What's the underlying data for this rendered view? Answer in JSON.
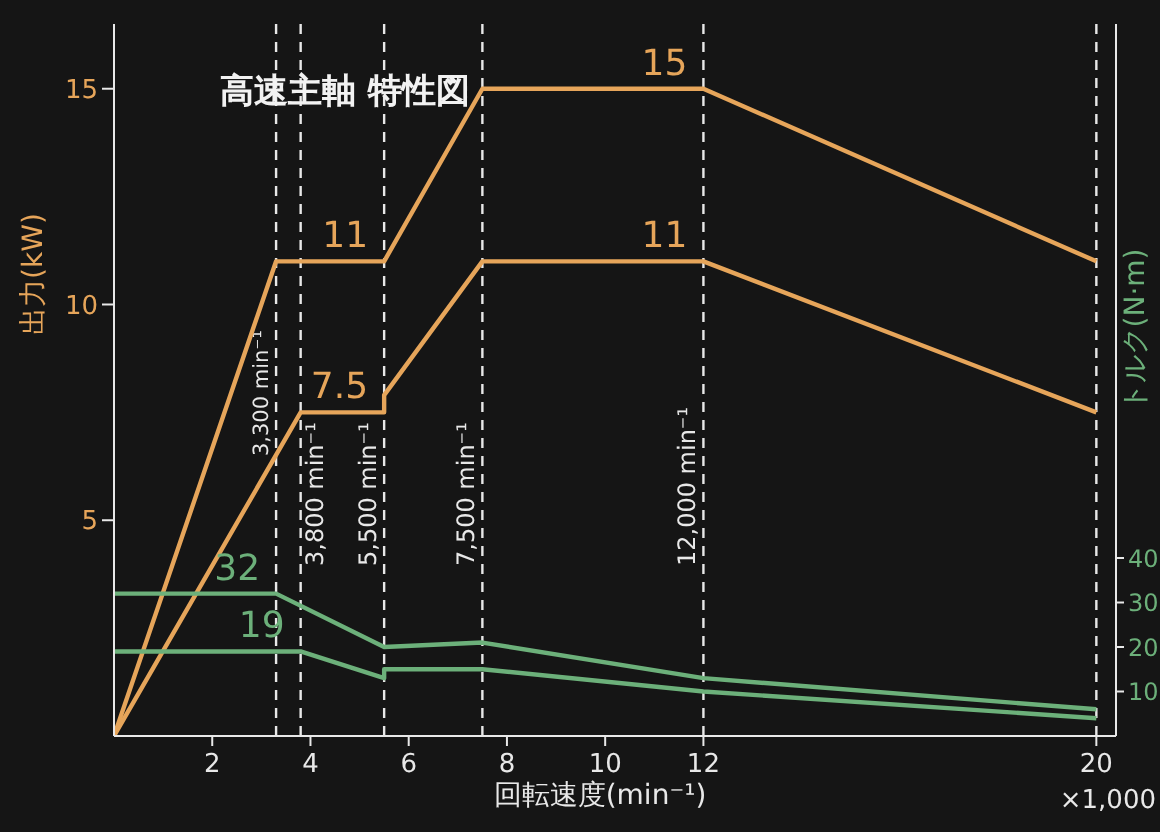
{
  "chart_data": {
    "type": "line",
    "title": "高速主軸 特性図",
    "xlabel": "回転速度(min⁻¹)",
    "ylabel": "出力(kW)",
    "y2label": "トルク(N·m)",
    "annotations": [
      "×1,000"
    ],
    "xlim": [
      0,
      20.4
    ],
    "xticks": [
      2,
      4,
      6,
      8,
      10,
      12,
      20
    ],
    "ylim": [
      0,
      16.5
    ],
    "yticks": [
      5,
      10,
      15
    ],
    "y2lim": [
      0,
      160
    ],
    "y2ticks": [
      10,
      20,
      30,
      40
    ],
    "grid": false,
    "legend": false,
    "marker": "none",
    "line_style": "solid",
    "series": [
      {
        "color": "#e6a55a",
        "x": [
          0,
          3.3,
          5.5,
          7.5,
          12,
          20
        ],
        "values": [
          0,
          11,
          11,
          15,
          15,
          11
        ],
        "value_labels": [
          null,
          null,
          "11",
          null,
          "15",
          null
        ]
      },
      {
        "color": "#e6a55a",
        "x": [
          0,
          3.8,
          5.5,
          5.5,
          7.5,
          12,
          20
        ],
        "values": [
          0,
          7.5,
          7.5,
          7.9,
          11,
          11,
          7.5
        ],
        "value_labels": [
          null,
          null,
          "7.5",
          null,
          null,
          "11",
          null
        ]
      },
      {
        "color": "#6cb07a",
        "axis": "y2",
        "x": [
          0,
          3.3,
          5.5,
          7.5,
          12,
          20
        ],
        "values": [
          32,
          32,
          20,
          21,
          13,
          6
        ],
        "value_labels": [
          null,
          "32",
          null,
          null,
          null,
          null
        ]
      },
      {
        "color": "#6cb07a",
        "axis": "y2",
        "x": [
          0,
          3.8,
          5.5,
          5.5,
          7.5,
          12,
          20
        ],
        "values": [
          19,
          19,
          13,
          15,
          15,
          10,
          4
        ],
        "value_labels": [
          null,
          "19",
          null,
          null,
          null,
          null,
          null
        ]
      }
    ],
    "ref_lines": [
      {
        "axis": "x",
        "value": 3.3,
        "label": "3,300 min⁻¹",
        "color": "#e8e8e8",
        "line_style": "dashed"
      },
      {
        "axis": "x",
        "value": 3.8,
        "label": "3,800 min⁻¹",
        "color": "#e8e8e8",
        "line_style": "dashed"
      },
      {
        "axis": "x",
        "value": 5.5,
        "label": "5,500 min⁻¹",
        "color": "#e8e8e8",
        "line_style": "dashed"
      },
      {
        "axis": "x",
        "value": 7.5,
        "label": "7,500 min⁻¹",
        "color": "#e8e8e8",
        "line_style": "dashed"
      },
      {
        "axis": "x",
        "value": 12,
        "label": "12,000 min⁻¹",
        "color": "#e8e8e8",
        "line_style": "dashed"
      },
      {
        "axis": "x",
        "value": 20,
        "label": null,
        "color": "#e8e8e8",
        "line_style": "dashed"
      }
    ]
  }
}
